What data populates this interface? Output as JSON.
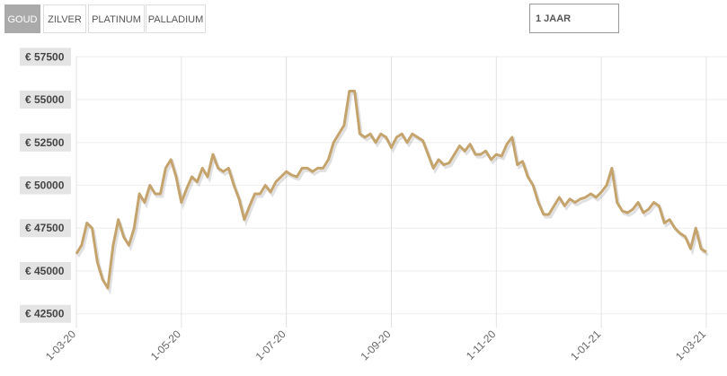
{
  "controls": {
    "tabs": [
      "GOUD",
      "ZILVER",
      "PLATINUM",
      "PALLADIUM"
    ],
    "period": "1 JAAR"
  },
  "chart_data": {
    "type": "line",
    "categories": [
      "1-03-20",
      null,
      null,
      null,
      null,
      null,
      null,
      null,
      null,
      null,
      null,
      null,
      null,
      null,
      null,
      null,
      null,
      null,
      null,
      null,
      "1-05-20",
      null,
      null,
      null,
      null,
      null,
      null,
      null,
      null,
      null,
      null,
      null,
      null,
      null,
      null,
      null,
      null,
      null,
      null,
      null,
      "1-07-20",
      null,
      null,
      null,
      null,
      null,
      null,
      null,
      null,
      null,
      null,
      null,
      null,
      null,
      null,
      null,
      null,
      null,
      null,
      null,
      "1-09-20",
      null,
      null,
      null,
      null,
      null,
      null,
      null,
      null,
      null,
      null,
      null,
      null,
      null,
      null,
      null,
      null,
      null,
      null,
      null,
      "1-11-20",
      null,
      null,
      null,
      null,
      null,
      null,
      null,
      null,
      null,
      null,
      null,
      null,
      null,
      null,
      null,
      null,
      null,
      null,
      null,
      "1-01-21",
      null,
      null,
      null,
      null,
      null,
      null,
      null,
      null,
      null,
      null,
      null,
      null,
      null,
      null,
      null,
      null,
      null,
      null,
      null,
      "1-03-21"
    ],
    "series": [
      {
        "color": "#c4a46c",
        "values": [
          46000,
          46500,
          47800,
          47500,
          45500,
          44500,
          44000,
          46500,
          48000,
          47000,
          46500,
          47500,
          49500,
          49000,
          50000,
          49500,
          49500,
          51000,
          51500,
          50500,
          49000,
          49800,
          50500,
          50200,
          51000,
          50500,
          51800,
          51000,
          50800,
          51000,
          50000,
          49200,
          48000,
          48800,
          49500,
          49500,
          50000,
          49600,
          50200,
          50500,
          50800,
          50600,
          50500,
          51000,
          51000,
          50800,
          51000,
          51000,
          51500,
          52500,
          53000,
          53500,
          55500,
          55500,
          53000,
          52800,
          53000,
          52500,
          53000,
          52800,
          52200,
          52800,
          53000,
          52500,
          53000,
          52800,
          52600,
          51800,
          51000,
          51500,
          51200,
          51300,
          51800,
          52300,
          52000,
          52400,
          51800,
          51800,
          52000,
          51500,
          51800,
          51700,
          52400,
          52800,
          51200,
          51400,
          50500,
          50000,
          49000,
          48300,
          48300,
          48800,
          49300,
          48800,
          49200,
          49000,
          49200,
          49300,
          49500,
          49300,
          49600,
          50000,
          51000,
          49000,
          48500,
          48400,
          48600,
          49000,
          48400,
          48600,
          49000,
          48800,
          47800,
          48000,
          47500,
          47200,
          47000,
          46300,
          47500,
          46300,
          46100
        ]
      }
    ],
    "ylim": [
      41700,
      58300
    ],
    "yticks": [
      {
        "value": 42500,
        "label": "€ 42500"
      },
      {
        "value": 45000,
        "label": "€ 45000"
      },
      {
        "value": 47500,
        "label": "€ 47500"
      },
      {
        "value": 50000,
        "label": "€ 50000"
      },
      {
        "value": 52500,
        "label": "€ 52500"
      },
      {
        "value": 55000,
        "label": "€ 55000"
      },
      {
        "value": 57500,
        "label": "€ 57500"
      }
    ],
    "grid": true
  }
}
